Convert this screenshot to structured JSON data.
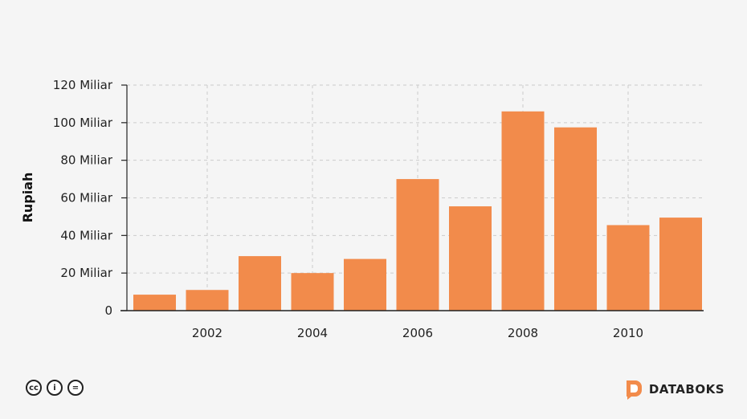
{
  "chart_data": {
    "type": "bar",
    "categories": [
      "2001",
      "2002",
      "2003",
      "2004",
      "2005",
      "2006",
      "2007",
      "2008",
      "2009",
      "2010",
      "2011"
    ],
    "values": [
      8.5,
      11,
      29,
      20,
      27.5,
      70,
      55.5,
      106,
      97.5,
      45.5,
      49.5
    ],
    "ylabel": "Rupiah",
    "xlabel": "",
    "title": "",
    "ylim": [
      0,
      120
    ],
    "yticks": [
      0,
      20,
      40,
      60,
      80,
      100,
      120
    ],
    "ytick_labels": [
      "0",
      "20 Miliar",
      "40 Miliar",
      "60 Miliar",
      "80 Miliar",
      "100 Miliar",
      "120 Miliar"
    ],
    "xticks": [
      2002,
      2004,
      2006,
      2008,
      2010
    ],
    "xtick_labels": [
      "2002",
      "2004",
      "2006",
      "2008",
      "2010"
    ],
    "grid": true,
    "bar_color": "#f28b4b"
  },
  "footer": {
    "license_icons": [
      "cc-icon",
      "by-icon",
      "nd-icon"
    ],
    "license_glyphs": [
      "cc",
      "i",
      "="
    ],
    "brand": "DATABOKS",
    "brand_color": "#f28b4b"
  }
}
